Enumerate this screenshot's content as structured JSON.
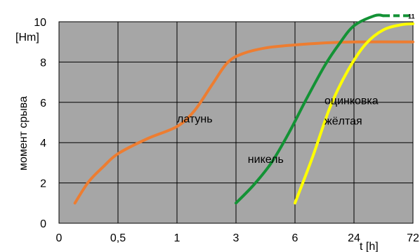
{
  "chart_data": {
    "type": "line",
    "ylabel": "момент срыва",
    "yunit": "[Hm]",
    "xlabel": "t [h]",
    "ylim": [
      0,
      10
    ],
    "yticks": [
      0,
      2,
      4,
      6,
      8,
      10
    ],
    "xticks": [
      "0",
      "0,5",
      "1",
      "3",
      "6",
      "24",
      "72"
    ],
    "grid": true,
    "background": "#a6a6a6",
    "series": [
      {
        "name": "латунь",
        "color": "#ed7d31",
        "points": [
          [
            0.27,
            1.0
          ],
          [
            0.5,
            2.05
          ],
          [
            0.75,
            2.8
          ],
          [
            1,
            3.45
          ],
          [
            1.5,
            4.2
          ],
          [
            2,
            4.8
          ],
          [
            2.3,
            5.6
          ],
          [
            2.6,
            6.9
          ],
          [
            2.85,
            7.95
          ],
          [
            3.1,
            8.4
          ],
          [
            3.5,
            8.7
          ],
          [
            4,
            8.85
          ],
          [
            4.5,
            8.95
          ],
          [
            5,
            9.0
          ],
          [
            6,
            9.0
          ]
        ]
      },
      {
        "name": "никель",
        "color": "#139235",
        "points": [
          [
            3.0,
            1.0
          ],
          [
            3.3,
            1.9
          ],
          [
            3.6,
            3.0
          ],
          [
            3.9,
            4.5
          ],
          [
            4.2,
            6.2
          ],
          [
            4.5,
            7.8
          ],
          [
            4.75,
            8.9
          ],
          [
            5.0,
            9.8
          ],
          [
            5.35,
            10.3
          ],
          [
            5.5,
            10.3
          ]
        ]
      },
      {
        "name": "никель",
        "color": "#139235",
        "dashed": true,
        "points": [
          [
            5.5,
            10.3
          ],
          [
            6.0,
            10.3
          ]
        ]
      },
      {
        "name": "оцинковка жёлтая",
        "color": "#ffff00",
        "points": [
          [
            4.0,
            1.0
          ],
          [
            4.3,
            3.3
          ],
          [
            4.6,
            5.8
          ],
          [
            4.9,
            7.6
          ],
          [
            5.2,
            8.9
          ],
          [
            5.5,
            9.6
          ],
          [
            5.8,
            9.85
          ],
          [
            6.0,
            9.9
          ]
        ]
      }
    ],
    "annotations": [
      {
        "text": "латунь",
        "x": 2.0,
        "y": 5.0
      },
      {
        "text": "никель",
        "x": 3.2,
        "y": 3.0
      },
      {
        "text": "оцинковка",
        "x": 4.5,
        "y": 5.9
      },
      {
        "text": "жёлтая",
        "x": 4.5,
        "y": 4.9
      },
      {
        "text": "11",
        "x": 6.0,
        "y": 10.3
      }
    ]
  }
}
